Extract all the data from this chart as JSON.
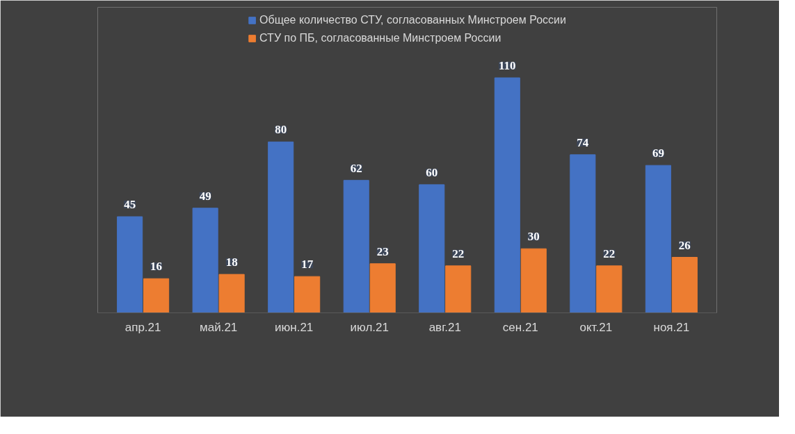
{
  "chart_data": {
    "type": "bar",
    "categories": [
      "апр.21",
      "май.21",
      "июн.21",
      "июл.21",
      "авг.21",
      "сен.21",
      "окт.21",
      "ноя.21"
    ],
    "series": [
      {
        "name": "Общее количество СТУ, согласованных Минстроем России",
        "color": "#4472c4",
        "values": [
          45,
          49,
          80,
          62,
          60,
          110,
          74,
          69
        ]
      },
      {
        "name": "СТУ по ПБ, согласованные Минстроем России",
        "color": "#ed7d31",
        "values": [
          16,
          18,
          17,
          23,
          22,
          30,
          22,
          26
        ]
      }
    ],
    "data_labels": true,
    "legend": "top",
    "grid": false
  }
}
